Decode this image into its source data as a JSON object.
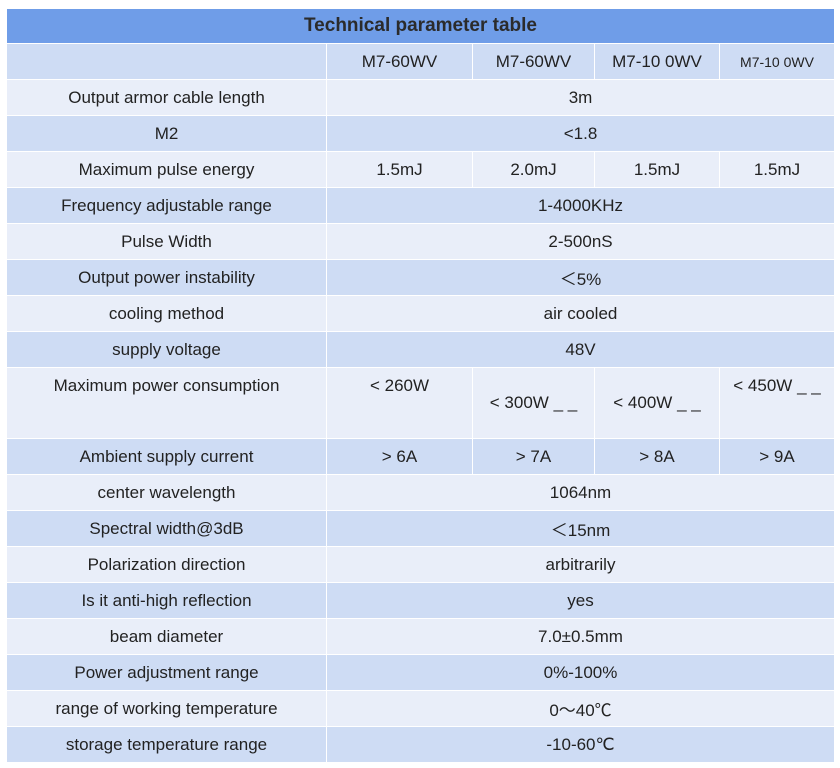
{
  "table": {
    "title": "Technical parameter table",
    "header": [
      "M7-60WV",
      "M7-60WV",
      "M7-10 0WV",
      "M7-10 0WV"
    ],
    "rows": [
      {
        "label": "Output armor cable length",
        "values": [
          "3m"
        ]
      },
      {
        "label": "M2",
        "values": [
          "<1.8"
        ]
      },
      {
        "label": "Maximum pulse energy",
        "values": [
          "1.5mJ",
          "2.0mJ",
          "1.5mJ",
          "1.5mJ"
        ]
      },
      {
        "label": "Frequency adjustable range",
        "values": [
          "1-4000KHz"
        ]
      },
      {
        "label": "Pulse Width",
        "values": [
          "2-500nS"
        ]
      },
      {
        "label": "Output power instability",
        "values": [
          "＜5%"
        ]
      },
      {
        "label": "cooling method",
        "values": [
          "air cooled"
        ]
      },
      {
        "label": "supply voltage",
        "values": [
          "48V"
        ]
      },
      {
        "label": "Maximum power consumption",
        "values": [
          "< 260W",
          "< 300W _ _",
          "< 400W _ _",
          "< 450W _ _"
        ]
      },
      {
        "label": "Ambient supply current",
        "values": [
          "> 6A",
          "> 7A",
          "> 8A",
          "> 9A"
        ]
      },
      {
        "label": "center wavelength",
        "values": [
          "1064nm"
        ]
      },
      {
        "label": "Spectral width@3dB",
        "values": [
          "＜15nm"
        ]
      },
      {
        "label": "Polarization direction",
        "values": [
          "arbitrarily"
        ]
      },
      {
        "label": "Is it anti-high reflection",
        "values": [
          "yes"
        ]
      },
      {
        "label": "beam diameter",
        "values": [
          "7.0±0.5mm"
        ]
      },
      {
        "label": "Power adjustment range",
        "values": [
          "0%-100%"
        ]
      },
      {
        "label": "range of working temperature",
        "values": [
          "0～40℃"
        ]
      },
      {
        "label": "storage temperature range",
        "values": [
          "-10-60℃"
        ]
      }
    ]
  }
}
